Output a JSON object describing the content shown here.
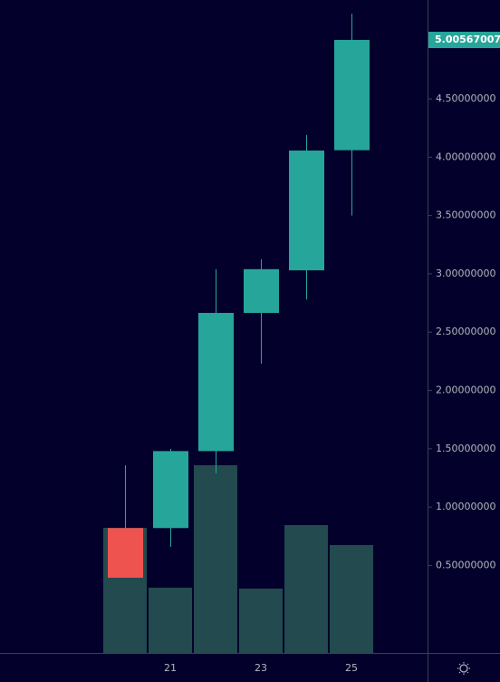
{
  "chart_data": {
    "type": "candlestick",
    "categories": [
      null,
      "21",
      null,
      "23",
      null,
      "25"
    ],
    "open": [
      0.82,
      0.82,
      1.48,
      2.665,
      3.03,
      4.06
    ],
    "high": [
      1.358,
      1.5,
      3.04,
      3.124,
      4.19,
      5.23
    ],
    "low": [
      0.394,
      0.66,
      1.29,
      2.23,
      2.78,
      3.5
    ],
    "close": [
      0.394,
      1.48,
      2.665,
      3.04,
      4.057,
      5.00567007
    ],
    "volume": [
      138,
      72,
      207,
      71,
      141,
      119
    ],
    "up_color": "#26a69a",
    "down_color": "#ef5350",
    "volume_color": "#224a4f",
    "ylim": [
      -0.251,
      5.348
    ],
    "yticks": [
      {
        "value": 0.5,
        "label": "0.50000000"
      },
      {
        "value": 1.0,
        "label": "1.00000000"
      },
      {
        "value": 1.5,
        "label": "1.50000000"
      },
      {
        "value": 2.0,
        "label": "2.00000000"
      },
      {
        "value": 2.5,
        "label": "2.50000000"
      },
      {
        "value": 3.0,
        "label": "3.00000000"
      },
      {
        "value": 3.5,
        "label": "3.50000000"
      },
      {
        "value": 4.0,
        "label": "4.00000000"
      },
      {
        "value": 4.5,
        "label": "4.50000000"
      }
    ],
    "grid": false
  }
}
